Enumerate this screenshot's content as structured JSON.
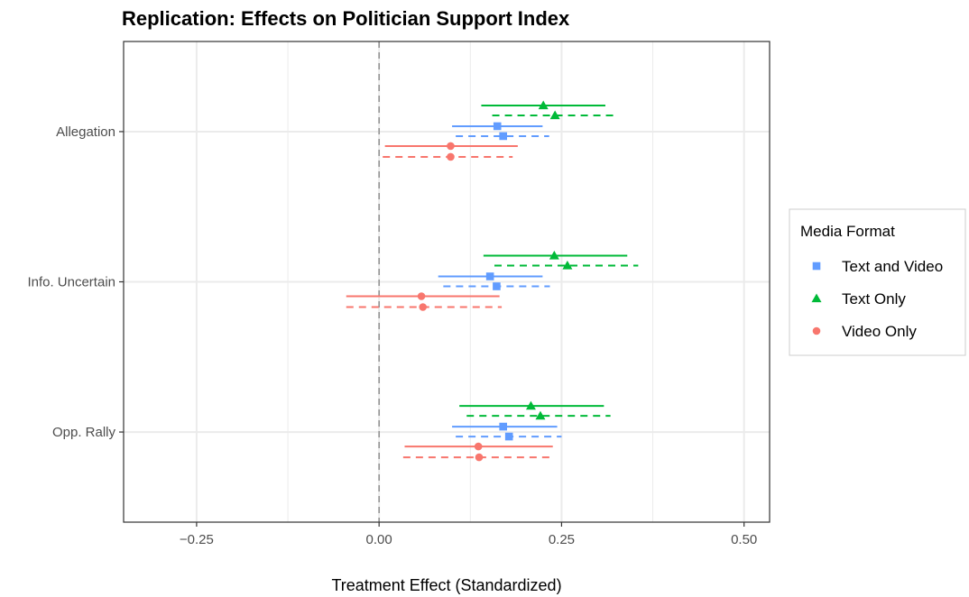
{
  "chart_data": {
    "type": "scatter",
    "title": "Replication: Effects on Politician Support Index",
    "xlabel": "Treatment Effect (Standardized)",
    "ylabel": "",
    "xlim": [
      -0.35,
      0.535
    ],
    "x_ticks": [
      -0.25,
      0.0,
      0.25,
      0.5
    ],
    "x_tick_labels": [
      "−0.25",
      "0.00",
      "0.25",
      "0.50"
    ],
    "categories": [
      "Allegation",
      "Info. Uncertain",
      "Opp. Rally"
    ],
    "reference_line": 0,
    "grid": true,
    "legend": {
      "title": "Media Format",
      "position": "right",
      "entries": [
        "Text and Video",
        "Text Only",
        "Video Only"
      ]
    },
    "series": [
      {
        "name": "Text Only",
        "color": "#00BA38",
        "marker": "triangle",
        "points": [
          {
            "category": "Allegation",
            "linestyle": "solid",
            "estimate": 0.225,
            "low": 0.14,
            "high": 0.31
          },
          {
            "category": "Allegation",
            "linestyle": "dashed",
            "estimate": 0.241,
            "low": 0.155,
            "high": 0.328
          },
          {
            "category": "Info. Uncertain",
            "linestyle": "solid",
            "estimate": 0.24,
            "low": 0.143,
            "high": 0.34
          },
          {
            "category": "Info. Uncertain",
            "linestyle": "dashed",
            "estimate": 0.258,
            "low": 0.158,
            "high": 0.355
          },
          {
            "category": "Opp. Rally",
            "linestyle": "solid",
            "estimate": 0.208,
            "low": 0.11,
            "high": 0.308
          },
          {
            "category": "Opp. Rally",
            "linestyle": "dashed",
            "estimate": 0.221,
            "low": 0.12,
            "high": 0.317
          }
        ]
      },
      {
        "name": "Text and Video",
        "color": "#619CFF",
        "marker": "square",
        "points": [
          {
            "category": "Allegation",
            "linestyle": "solid",
            "estimate": 0.162,
            "low": 0.1,
            "high": 0.224
          },
          {
            "category": "Allegation",
            "linestyle": "dashed",
            "estimate": 0.17,
            "low": 0.105,
            "high": 0.233
          },
          {
            "category": "Info. Uncertain",
            "linestyle": "solid",
            "estimate": 0.152,
            "low": 0.081,
            "high": 0.224
          },
          {
            "category": "Info. Uncertain",
            "linestyle": "dashed",
            "estimate": 0.161,
            "low": 0.088,
            "high": 0.234
          },
          {
            "category": "Opp. Rally",
            "linestyle": "solid",
            "estimate": 0.17,
            "low": 0.1,
            "high": 0.244
          },
          {
            "category": "Opp. Rally",
            "linestyle": "dashed",
            "estimate": 0.178,
            "low": 0.105,
            "high": 0.25
          }
        ]
      },
      {
        "name": "Video Only",
        "color": "#F8766D",
        "marker": "circle",
        "points": [
          {
            "category": "Allegation",
            "linestyle": "solid",
            "estimate": 0.098,
            "low": 0.008,
            "high": 0.19
          },
          {
            "category": "Allegation",
            "linestyle": "dashed",
            "estimate": 0.098,
            "low": 0.005,
            "high": 0.183
          },
          {
            "category": "Info. Uncertain",
            "linestyle": "solid",
            "estimate": 0.058,
            "low": -0.045,
            "high": 0.165
          },
          {
            "category": "Info. Uncertain",
            "linestyle": "dashed",
            "estimate": 0.06,
            "low": -0.045,
            "high": 0.168
          },
          {
            "category": "Opp. Rally",
            "linestyle": "solid",
            "estimate": 0.136,
            "low": 0.035,
            "high": 0.238
          },
          {
            "category": "Opp. Rally",
            "linestyle": "dashed",
            "estimate": 0.137,
            "low": 0.033,
            "high": 0.24
          }
        ]
      }
    ]
  }
}
